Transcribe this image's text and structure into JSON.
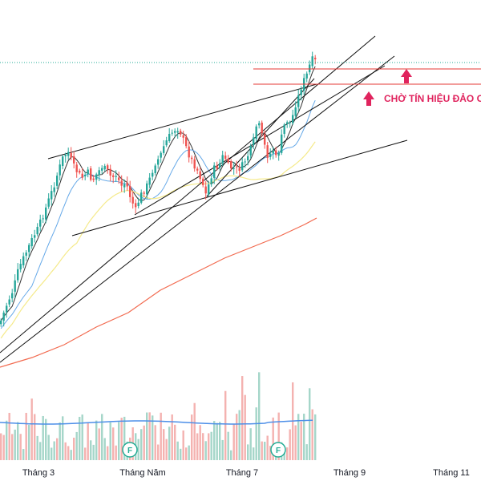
{
  "chart_data": {
    "type": "candlestick",
    "grid": false,
    "legend": "none",
    "colors": {
      "up": "#26a69a",
      "down": "#ef5350",
      "volume_up": "#a5d6c9",
      "volume_down": "#f4b2b0",
      "ma_short": "#333333",
      "ma_mid": "#64a8e8",
      "ma_long": "#f5ea8a",
      "ma_longest": "#f26a4f",
      "volume_ma": "#4d8fe8",
      "resistance": "#e53935",
      "trendline": "#111111",
      "current_price_line": "#22ab94",
      "annotation": "#e0245e",
      "event_marker": "#22ab94"
    },
    "x_axis": {
      "ticks": [
        "Tháng 3",
        "Tháng Năm",
        "Tháng 7",
        "Tháng 9",
        "Tháng 11"
      ]
    },
    "annotation": {
      "text": "CHỜ TÍN HIỆU ĐẢO CH",
      "arrow_icons": [
        "up-arrow-icon",
        "up-arrow-icon"
      ]
    },
    "event_markers": [
      "F",
      "F"
    ]
  }
}
